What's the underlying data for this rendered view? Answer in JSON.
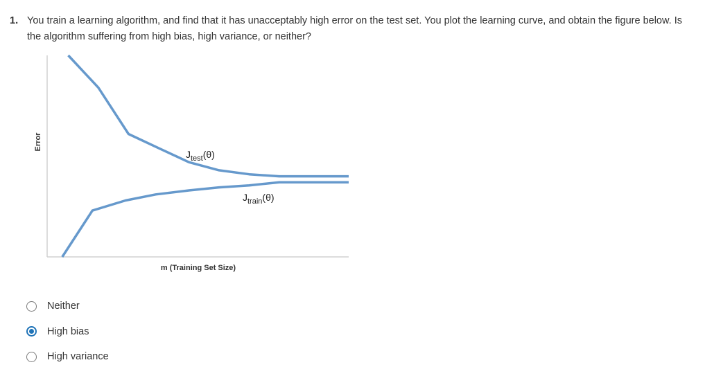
{
  "question": {
    "number": "1.",
    "text": "You train a learning algorithm, and find that it has unacceptably high error on the test set. You plot the learning curve, and obtain the figure below. Is the algorithm suffering from high bias, high variance, or neither?"
  },
  "chart_data": {
    "type": "line",
    "xlabel": "m (Training Set Size)",
    "ylabel": "Error",
    "grid": false,
    "series": [
      {
        "name": "J_test(θ)",
        "label_main": "J",
        "label_sub": "test",
        "label_tail": "(θ)",
        "color": "#6699cc",
        "x": [
          0.07,
          0.17,
          0.27,
          0.37,
          0.47,
          0.57,
          0.67,
          0.77,
          1.0
        ],
        "y": [
          1.0,
          0.84,
          0.61,
          0.54,
          0.47,
          0.43,
          0.41,
          0.4,
          0.4
        ]
      },
      {
        "name": "J_train(θ)",
        "label_main": "J",
        "label_sub": "train",
        "label_tail": "(θ)",
        "color": "#6699cc",
        "x": [
          0.05,
          0.15,
          0.26,
          0.36,
          0.47,
          0.57,
          0.67,
          0.77,
          1.0
        ],
        "y": [
          0.0,
          0.23,
          0.28,
          0.31,
          0.33,
          0.345,
          0.355,
          0.37,
          0.37
        ]
      }
    ]
  },
  "options": [
    {
      "label": "Neither",
      "selected": false
    },
    {
      "label": "High bias",
      "selected": true
    },
    {
      "label": "High variance",
      "selected": false
    }
  ]
}
